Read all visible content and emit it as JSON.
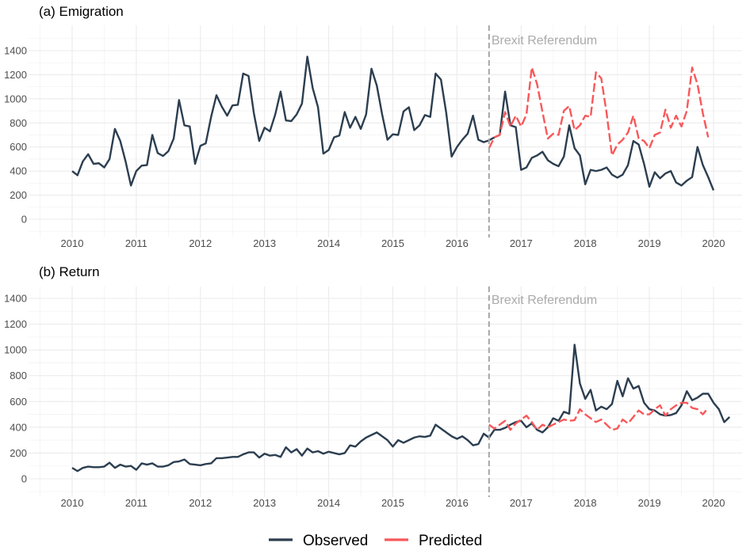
{
  "legend": {
    "items": [
      {
        "label": "Observed",
        "color": "#2c3e50"
      },
      {
        "label": "Predicted",
        "color": "#f8585a"
      }
    ]
  },
  "chart_data": [
    {
      "type": "line",
      "title": "(a) Emigration",
      "xlabel": "",
      "ylabel": "",
      "xlim": [
        2009.6,
        2020.4
      ],
      "ylim": [
        -90,
        1560
      ],
      "x_ticks": [
        "2010",
        "2011",
        "2012",
        "2013",
        "2014",
        "2015",
        "2016",
        "2017",
        "2018",
        "2019",
        "2020"
      ],
      "y_ticks": [
        "0",
        "200",
        "400",
        "600",
        "800",
        "1000",
        "1200",
        "1400"
      ],
      "grid": true,
      "annotation": {
        "label": "Brexit Referendum",
        "x": 2016.5
      },
      "x_start": 2010.0,
      "x_step_months": 1,
      "series": [
        {
          "name": "Observed",
          "start": 2010.0,
          "values": [
            400,
            365,
            480,
            540,
            460,
            465,
            430,
            500,
            750,
            650,
            480,
            280,
            400,
            445,
            450,
            700,
            550,
            525,
            565,
            670,
            990,
            780,
            770,
            460,
            610,
            630,
            850,
            1030,
            935,
            860,
            945,
            950,
            1210,
            1190,
            880,
            650,
            760,
            730,
            870,
            1060,
            820,
            815,
            870,
            960,
            1350,
            1090,
            930,
            545,
            575,
            680,
            695,
            890,
            760,
            850,
            750,
            870,
            1250,
            1110,
            870,
            660,
            705,
            700,
            895,
            930,
            740,
            780,
            865,
            850,
            1210,
            1160,
            880,
            520,
            600,
            660,
            710,
            860,
            660,
            640,
            655,
            680,
            700,
            1060,
            780,
            765,
            410,
            430,
            510,
            530,
            560,
            490,
            460,
            440,
            520,
            780,
            590,
            530,
            290,
            410,
            400,
            410,
            430,
            370,
            345,
            370,
            450,
            650,
            620,
            460,
            270,
            390,
            340,
            380,
            400,
            305,
            280,
            320,
            350,
            600,
            450,
            350,
            240
          ]
        },
        {
          "name": "Predicted",
          "start": 2016.5,
          "values": [
            590,
            680,
            700,
            890,
            770,
            860,
            770,
            870,
            1260,
            1120,
            890,
            670,
            710,
            700,
            900,
            940,
            740,
            780,
            860,
            850,
            1220,
            1170,
            880,
            530,
            620,
            660,
            720,
            860,
            670,
            650,
            590,
            700,
            720,
            910,
            760,
            860,
            770,
            900,
            1260,
            1120,
            880,
            680
          ]
        }
      ]
    },
    {
      "type": "line",
      "title": "(b) Return",
      "xlabel": "",
      "ylabel": "",
      "xlim": [
        2009.6,
        2020.4
      ],
      "ylim": [
        -90,
        1560
      ],
      "x_ticks": [
        "2010",
        "2011",
        "2012",
        "2013",
        "2014",
        "2015",
        "2016",
        "2017",
        "2018",
        "2019",
        "2020"
      ],
      "y_ticks": [
        "0",
        "200",
        "400",
        "600",
        "800",
        "1000",
        "1200",
        "1400"
      ],
      "grid": true,
      "annotation": {
        "label": "Brexit Referendum",
        "x": 2016.5
      },
      "x_start": 2010.0,
      "x_step_months": 1,
      "series": [
        {
          "name": "Observed",
          "start": 2010.0,
          "values": [
            85,
            60,
            85,
            95,
            90,
            90,
            95,
            125,
            85,
            110,
            95,
            100,
            70,
            120,
            110,
            120,
            95,
            95,
            105,
            130,
            135,
            150,
            115,
            110,
            105,
            115,
            120,
            160,
            160,
            165,
            170,
            170,
            190,
            205,
            205,
            165,
            195,
            180,
            185,
            170,
            245,
            205,
            230,
            180,
            235,
            205,
            215,
            195,
            210,
            200,
            190,
            200,
            260,
            250,
            290,
            320,
            340,
            360,
            330,
            300,
            250,
            300,
            280,
            300,
            320,
            330,
            325,
            335,
            420,
            390,
            360,
            330,
            310,
            330,
            300,
            260,
            270,
            350,
            320,
            380,
            380,
            395,
            420,
            440,
            450,
            400,
            430,
            380,
            360,
            400,
            470,
            450,
            520,
            505,
            1040,
            740,
            620,
            690,
            530,
            560,
            540,
            580,
            760,
            640,
            780,
            700,
            720,
            590,
            540,
            530,
            500,
            490,
            495,
            510,
            570,
            680,
            610,
            630,
            660,
            660,
            590,
            540,
            440,
            480
          ]
        },
        {
          "name": "Predicted",
          "start": 2016.5,
          "values": [
            420,
            390,
            420,
            450,
            380,
            430,
            460,
            490,
            440,
            380,
            420,
            400,
            420,
            440,
            460,
            450,
            455,
            540,
            500,
            470,
            440,
            460,
            420,
            380,
            390,
            460,
            430,
            480,
            530,
            500,
            500,
            540,
            570,
            490,
            540,
            570,
            590,
            590,
            550,
            540,
            500,
            550
          ]
        }
      ]
    }
  ]
}
